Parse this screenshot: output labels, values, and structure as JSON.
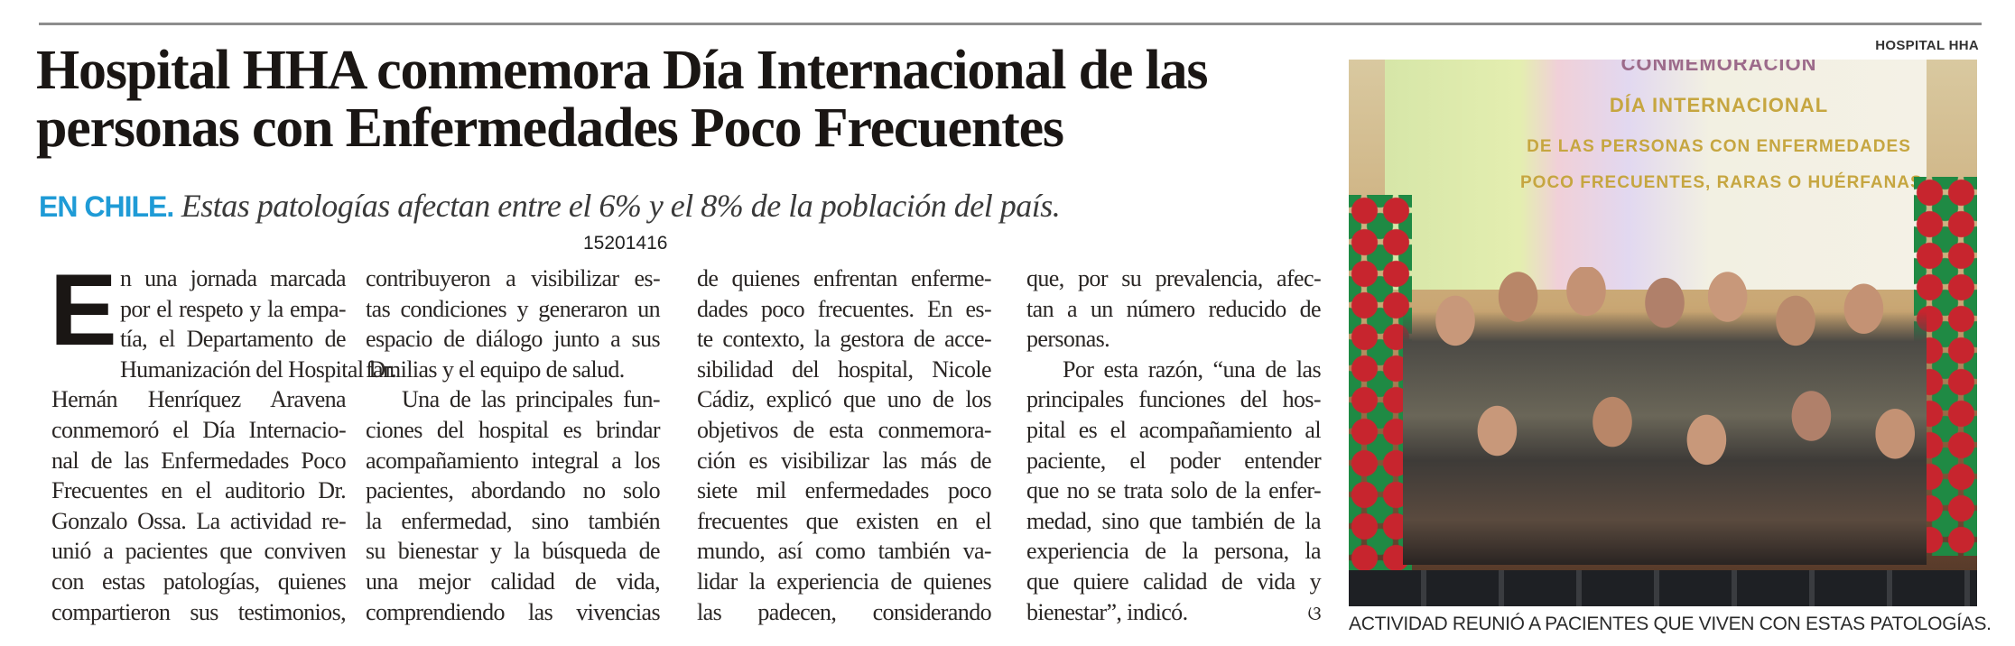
{
  "article": {
    "title": "Hospital HHA conmemora Día Internacional de las personas con Enfermedades Poco Frecuentes",
    "kicker": "EN CHILE.",
    "deck": " Estas patologías afectan entre el 6% y el 8% de la población del país.",
    "dropcap": "E",
    "columns": [
      {
        "lines": [
          {
            "t": "n una jornada marcada"
          },
          {
            "t": "por el respeto y la empa-"
          },
          {
            "t": "tía, el Departamento de"
          },
          {
            "t": "Humanización del Hospital Dr."
          },
          {
            "t": "Hernán Henríquez Aravena"
          },
          {
            "t": "conmemoró el Día Internacio-"
          },
          {
            "t": "nal de las Enfermedades Poco"
          },
          {
            "t": "Frecuentes en el auditorio Dr."
          },
          {
            "t": "Gonzalo Ossa. La actividad re-"
          },
          {
            "t": "unió a pacientes que conviven"
          },
          {
            "t": "con estas patologías, quienes"
          },
          {
            "t": "compartieron sus testimonios,"
          }
        ]
      },
      {
        "lines": [
          {
            "t": "contribuyeron a visibilizar es-"
          },
          {
            "t": "tas condiciones y generaron un"
          },
          {
            "t": "espacio de diálogo junto a sus"
          },
          {
            "t": "familias y el equipo de salud.",
            "last": true
          },
          {
            "t": "Una de las principales fun-",
            "indent": true
          },
          {
            "t": "ciones del hospital es brindar"
          },
          {
            "t": "acompañamiento integral a los"
          },
          {
            "t": "pacientes, abordando no solo"
          },
          {
            "t": "la enfermedad, sino también"
          },
          {
            "t": "su bienestar y la búsqueda de"
          },
          {
            "t": "una mejor calidad de vida,"
          },
          {
            "t": "comprendiendo las vivencias"
          }
        ]
      },
      {
        "lines": [
          {
            "t": "de quienes enfrentan enferme-"
          },
          {
            "t": "dades poco frecuentes. En es-"
          },
          {
            "t": "te contexto, la gestora de acce-"
          },
          {
            "t": "sibilidad del hospital, Nicole"
          },
          {
            "t": "Cádiz, explicó que uno de los"
          },
          {
            "t": "objetivos de esta conmemora-"
          },
          {
            "t": "ción es visibilizar las más de"
          },
          {
            "t": "siete mil enfermedades poco"
          },
          {
            "t": "frecuentes que existen en el"
          },
          {
            "t": "mundo, así como también va-"
          },
          {
            "t": "lidar la experiencia de quienes"
          },
          {
            "t": "las padecen, considerando"
          }
        ]
      },
      {
        "lines": [
          {
            "t": "que, por su prevalencia, afec-"
          },
          {
            "t": "tan a un número reducido de"
          },
          {
            "t": "personas.",
            "last": true
          },
          {
            "t": "Por esta razón, “una de las",
            "indent": true
          },
          {
            "t": "principales funciones del hos-"
          },
          {
            "t": "pital es el acompañamiento al"
          },
          {
            "t": "paciente, el poder entender"
          },
          {
            "t": "que no se trata solo de la enfer-"
          },
          {
            "t": "medad, sino que también de la"
          },
          {
            "t": "experiencia de la persona, la"
          },
          {
            "t": "que quiere calidad de vida y"
          },
          {
            "t": "bienestar”, indicó.",
            "last": true
          }
        ]
      }
    ],
    "end_mark": "ଓ",
    "page_number": "15201416"
  },
  "photo": {
    "credit": "HOSPITAL HHA",
    "banner_lines": [
      "CONMEMORACIÓN",
      "DÍA INTERNACIONAL",
      "DE LAS PERSONAS CON ENFERMEDADES",
      "POCO FRECUENTES, RARAS O HUÉRFANAS"
    ],
    "caption": "ACTIVIDAD REUNIÓ A PACIENTES QUE VIVEN CON ESTAS PATOLOGÍAS."
  },
  "colors": {
    "kicker": "#1f9bd6",
    "text": "#1c1a18",
    "rule": "#8d8d8d"
  }
}
